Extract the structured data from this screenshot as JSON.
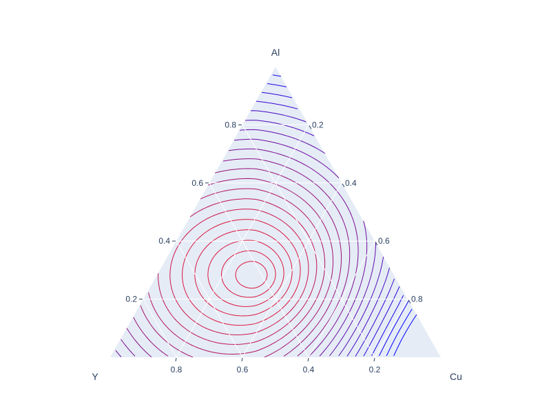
{
  "chart_data": {
    "type": "contour",
    "plot_kind": "ternary",
    "title": "",
    "axes": {
      "a": {
        "title": "Al",
        "ticks": [
          0.2,
          0.4,
          0.6,
          0.8
        ],
        "tick_labels": [
          "0.2",
          "0.4",
          "0.6",
          "0.8"
        ]
      },
      "b": {
        "title": "Y",
        "ticks": [
          0.2,
          0.4,
          0.6,
          0.8
        ],
        "tick_labels": [
          "0.2",
          "0.4",
          "0.6",
          "0.8"
        ]
      },
      "c": {
        "title": "Cu",
        "ticks": [
          0.2,
          0.4,
          0.6,
          0.8
        ],
        "tick_labels": [
          "0.2",
          "0.4",
          "0.6",
          "0.8"
        ]
      }
    },
    "grid": true,
    "background_color": "#e5ecf6",
    "colorscale": [
      "#dc143c",
      "#0000ff"
    ],
    "legend": "none",
    "field": {
      "description_of_values": "scalar value over composition (Al, Y, Cu)",
      "minimum_location": {
        "Al": 0.28,
        "Y": 0.42,
        "Cu": 0.3
      },
      "level_count": 22
    }
  }
}
